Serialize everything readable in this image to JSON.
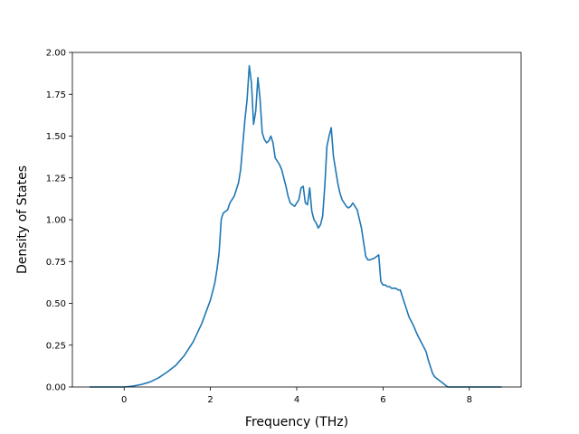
{
  "chart_data": {
    "type": "line",
    "title": "",
    "xlabel": "Frequency (THz)",
    "ylabel": "Density of States",
    "xlim": [
      -1.2,
      9.2
    ],
    "ylim": [
      0,
      2.0
    ],
    "xticks": [
      0,
      2,
      4,
      6,
      8
    ],
    "xtick_labels": [
      "0",
      "2",
      "4",
      "6",
      "8"
    ],
    "yticks": [
      0,
      0.25,
      0.5,
      0.75,
      1.0,
      1.25,
      1.5,
      1.75,
      2.0
    ],
    "ytick_labels": [
      "0.00",
      "0.25",
      "0.50",
      "0.75",
      "1.00",
      "1.25",
      "1.50",
      "1.75",
      "2.00"
    ],
    "grid": false,
    "line_color": "#1f77b4",
    "series": [
      {
        "x": [
          -0.8,
          -0.4,
          0.0,
          0.2,
          0.4,
          0.6,
          0.8,
          1.0,
          1.2,
          1.4,
          1.6,
          1.8,
          2.0,
          2.1,
          2.15,
          2.2,
          2.23,
          2.25,
          2.27,
          2.3,
          2.4,
          2.45,
          2.5,
          2.55,
          2.6,
          2.65,
          2.7,
          2.75,
          2.8,
          2.85,
          2.9,
          2.95,
          3.0,
          3.05,
          3.1,
          3.15,
          3.2,
          3.25,
          3.3,
          3.35,
          3.4,
          3.45,
          3.5,
          3.55,
          3.6,
          3.65,
          3.7,
          3.75,
          3.8,
          3.85,
          3.9,
          3.95,
          4.0,
          4.05,
          4.1,
          4.15,
          4.2,
          4.25,
          4.3,
          4.35,
          4.4,
          4.45,
          4.5,
          4.55,
          4.6,
          4.65,
          4.7,
          4.75,
          4.8,
          4.85,
          4.9,
          4.95,
          5.0,
          5.05,
          5.1,
          5.15,
          5.2,
          5.25,
          5.3,
          5.4,
          5.5,
          5.6,
          5.65,
          5.7,
          5.8,
          5.85,
          5.9,
          5.95,
          6.0,
          6.05,
          6.1,
          6.15,
          6.2,
          6.25,
          6.3,
          6.35,
          6.4,
          6.5,
          6.6,
          6.7,
          6.8,
          6.9,
          7.0,
          7.05,
          7.1,
          7.15,
          7.2,
          7.3,
          7.4,
          7.5,
          7.6,
          7.7,
          7.8,
          7.9,
          7.95,
          8.0,
          8.1,
          8.4,
          8.75
        ],
        "y": [
          0.0,
          0.0,
          0.0,
          0.005,
          0.015,
          0.03,
          0.055,
          0.09,
          0.13,
          0.19,
          0.27,
          0.38,
          0.52,
          0.62,
          0.7,
          0.8,
          0.92,
          1.0,
          1.02,
          1.04,
          1.06,
          1.1,
          1.12,
          1.14,
          1.18,
          1.22,
          1.3,
          1.45,
          1.6,
          1.72,
          1.92,
          1.82,
          1.57,
          1.65,
          1.85,
          1.72,
          1.52,
          1.48,
          1.46,
          1.47,
          1.5,
          1.46,
          1.37,
          1.35,
          1.33,
          1.3,
          1.25,
          1.2,
          1.14,
          1.1,
          1.09,
          1.08,
          1.1,
          1.12,
          1.19,
          1.2,
          1.1,
          1.09,
          1.19,
          1.05,
          1.0,
          0.98,
          0.95,
          0.97,
          1.02,
          1.2,
          1.44,
          1.5,
          1.55,
          1.38,
          1.3,
          1.22,
          1.16,
          1.12,
          1.1,
          1.08,
          1.07,
          1.08,
          1.1,
          1.06,
          0.95,
          0.78,
          0.76,
          0.76,
          0.77,
          0.78,
          0.79,
          0.63,
          0.61,
          0.61,
          0.6,
          0.6,
          0.59,
          0.59,
          0.59,
          0.58,
          0.58,
          0.5,
          0.42,
          0.37,
          0.31,
          0.26,
          0.21,
          0.16,
          0.12,
          0.08,
          0.06,
          0.04,
          0.02,
          0.0,
          0.0,
          0.0,
          0.0,
          0.0,
          0.0,
          0.0,
          0.0,
          0.0,
          0.0
        ]
      }
    ]
  }
}
